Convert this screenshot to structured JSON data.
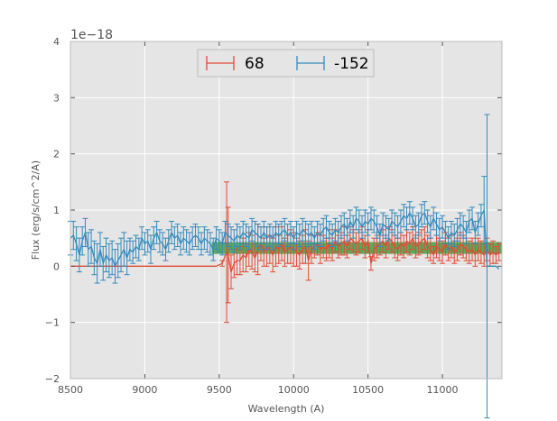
{
  "chart_data": {
    "type": "line",
    "title": "",
    "xlabel": "Wavelength (A)",
    "ylabel": "Flux (erg/s/cm^2/A)",
    "y_offset_label": "1e−18",
    "xlim": [
      8500,
      11400
    ],
    "ylim": [
      -2,
      4
    ],
    "x_ticks": [
      8500,
      9000,
      9500,
      10000,
      10500,
      11000
    ],
    "x_tick_labels": [
      "8500",
      "9000",
      "9500",
      "10000",
      "10500",
      "11000"
    ],
    "y_ticks": [
      -2,
      -1,
      0,
      1,
      2,
      3,
      4
    ],
    "y_tick_labels": [
      "−2",
      "−1",
      "0",
      "1",
      "2",
      "3",
      "4"
    ],
    "grid": true,
    "legend_position": "top-center",
    "band": {
      "x_start": 9450,
      "x_end": 11400,
      "y_low": 0.22,
      "y_high": 0.43,
      "color": "#3a9a3a"
    },
    "series": [
      {
        "name": "68",
        "color": "#e24a33",
        "x": [
          8500,
          9400,
          9480,
          9520,
          9550,
          9560,
          9580,
          9600,
          9620,
          9640,
          9660,
          9680,
          9700,
          9720,
          9740,
          9760,
          9780,
          9800,
          9820,
          9840,
          9860,
          9880,
          9900,
          9920,
          9940,
          9960,
          9980,
          10000,
          10020,
          10040,
          10060,
          10080,
          10100,
          10120,
          10140,
          10160,
          10180,
          10200,
          10220,
          10240,
          10260,
          10280,
          10300,
          10320,
          10340,
          10360,
          10380,
          10400,
          10420,
          10440,
          10460,
          10480,
          10500,
          10520,
          10540,
          10560,
          10580,
          10600,
          10620,
          10640,
          10660,
          10680,
          10700,
          10720,
          10740,
          10760,
          10780,
          10800,
          10820,
          10840,
          10860,
          10880,
          10900,
          10920,
          10940,
          10960,
          10980,
          11000,
          11020,
          11040,
          11060,
          11080,
          11100,
          11120,
          11140,
          11160,
          11180,
          11200,
          11220,
          11240,
          11260,
          11280,
          11300,
          11320,
          11340,
          11360,
          11380
        ],
        "y": [
          0,
          0,
          0,
          0.05,
          0.25,
          0.2,
          -0.1,
          0.05,
          0.1,
          0.1,
          0.2,
          0.15,
          0.3,
          0.25,
          0.15,
          0.3,
          0.4,
          0.25,
          0.35,
          0.3,
          0.2,
          0.35,
          0.3,
          0.4,
          0.25,
          0.3,
          0.35,
          0.3,
          0.25,
          0.2,
          0.3,
          0.35,
          0.1,
          0.3,
          0.35,
          0.4,
          0.3,
          0.35,
          0.3,
          0.4,
          0.3,
          0.45,
          0.35,
          0.4,
          0.45,
          0.35,
          0.5,
          0.45,
          0.4,
          0.45,
          0.5,
          0.35,
          0.45,
          0.05,
          0.3,
          0.35,
          0.4,
          0.45,
          0.35,
          0.5,
          0.45,
          0.35,
          0.3,
          0.4,
          0.35,
          0.45,
          0.4,
          0.5,
          0.35,
          0.4,
          0.45,
          0.5,
          0.35,
          0.3,
          0.2,
          0.35,
          0.3,
          0.25,
          0.4,
          0.3,
          0.35,
          0.25,
          0.3,
          0.4,
          0.35,
          0.3,
          0.25,
          0.3,
          0.2,
          0.3,
          0.25,
          0.2,
          0.3,
          0.2,
          0.25,
          0.2,
          0.25
        ],
        "err": [
          0,
          0,
          0,
          0.05,
          1.25,
          0.85,
          0.3,
          0.25,
          0.25,
          0.25,
          0.3,
          0.25,
          0.3,
          0.3,
          0.25,
          0.45,
          0.3,
          0.25,
          0.35,
          0.25,
          0.3,
          0.35,
          0.25,
          0.3,
          0.25,
          0.25,
          0.3,
          0.3,
          0.25,
          0.25,
          0.25,
          0.3,
          0.35,
          0.25,
          0.2,
          0.2,
          0.25,
          0.2,
          0.2,
          0.25,
          0.2,
          0.2,
          0.2,
          0.2,
          0.25,
          0.2,
          0.2,
          0.2,
          0.2,
          0.2,
          0.2,
          0.2,
          0.2,
          0.12,
          0.2,
          0.2,
          0.2,
          0.2,
          0.2,
          0.2,
          0.2,
          0.2,
          0.2,
          0.2,
          0.2,
          0.2,
          0.2,
          0.2,
          0.2,
          0.2,
          0.2,
          0.2,
          0.2,
          0.2,
          0.15,
          0.2,
          0.2,
          0.2,
          0.2,
          0.2,
          0.2,
          0.2,
          0.2,
          0.2,
          0.2,
          0.2,
          0.2,
          0.2,
          0.2,
          0.2,
          0.2,
          0.2,
          0.2,
          0.2,
          0.2,
          0.15,
          0.15
        ]
      },
      {
        "name": "-152",
        "color": "#348abd",
        "x": [
          8500,
          8520,
          8540,
          8560,
          8580,
          8600,
          8620,
          8640,
          8660,
          8680,
          8700,
          8720,
          8740,
          8760,
          8780,
          8800,
          8820,
          8840,
          8860,
          8880,
          8900,
          8920,
          8940,
          8960,
          8980,
          9000,
          9020,
          9040,
          9060,
          9080,
          9100,
          9120,
          9140,
          9160,
          9180,
          9200,
          9220,
          9240,
          9260,
          9280,
          9300,
          9320,
          9340,
          9360,
          9380,
          9400,
          9420,
          9440,
          9460,
          9480,
          9500,
          9520,
          9540,
          9560,
          9580,
          9600,
          9620,
          9640,
          9660,
          9680,
          9700,
          9720,
          9740,
          9760,
          9780,
          9800,
          9820,
          9840,
          9860,
          9880,
          9900,
          9920,
          9940,
          9960,
          9980,
          10000,
          10020,
          10040,
          10060,
          10080,
          10100,
          10120,
          10140,
          10160,
          10180,
          10200,
          10220,
          10240,
          10260,
          10280,
          10300,
          10320,
          10340,
          10360,
          10380,
          10400,
          10420,
          10440,
          10460,
          10480,
          10500,
          10520,
          10540,
          10560,
          10580,
          10600,
          10620,
          10640,
          10660,
          10680,
          10700,
          10720,
          10740,
          10760,
          10780,
          10800,
          10820,
          10840,
          10860,
          10880,
          10900,
          10920,
          10940,
          10960,
          10980,
          11000,
          11020,
          11040,
          11060,
          11080,
          11100,
          11120,
          11140,
          11160,
          11180,
          11200,
          11220,
          11240,
          11260,
          11280,
          11300,
          11320,
          11340,
          11360,
          11380
        ],
        "y": [
          0.5,
          0.55,
          0.4,
          0.2,
          0.45,
          0.6,
          0.3,
          0.35,
          0.15,
          0.05,
          0.3,
          0.05,
          0.2,
          0.1,
          0.15,
          0.0,
          0.1,
          0.2,
          0.3,
          0.15,
          0.3,
          0.25,
          0.35,
          0.3,
          0.5,
          0.4,
          0.45,
          0.3,
          0.5,
          0.6,
          0.45,
          0.4,
          0.3,
          0.45,
          0.6,
          0.5,
          0.55,
          0.4,
          0.5,
          0.45,
          0.4,
          0.5,
          0.55,
          0.5,
          0.4,
          0.5,
          0.45,
          0.4,
          0.3,
          0.5,
          0.45,
          0.4,
          0.6,
          0.55,
          0.5,
          0.45,
          0.55,
          0.5,
          0.6,
          0.55,
          0.5,
          0.65,
          0.6,
          0.55,
          0.5,
          0.6,
          0.5,
          0.55,
          0.5,
          0.6,
          0.55,
          0.6,
          0.65,
          0.55,
          0.6,
          0.5,
          0.6,
          0.55,
          0.65,
          0.6,
          0.55,
          0.6,
          0.5,
          0.6,
          0.55,
          0.65,
          0.7,
          0.6,
          0.55,
          0.65,
          0.6,
          0.7,
          0.75,
          0.65,
          0.8,
          0.7,
          0.85,
          0.8,
          0.7,
          0.8,
          0.75,
          0.85,
          0.8,
          0.7,
          0.55,
          0.75,
          0.7,
          0.65,
          0.8,
          0.75,
          0.7,
          0.8,
          0.9,
          0.85,
          0.95,
          0.85,
          0.7,
          0.75,
          0.9,
          0.95,
          0.8,
          0.7,
          0.85,
          0.75,
          0.65,
          0.7,
          0.6,
          0.5,
          0.6,
          0.55,
          0.65,
          0.75,
          0.7,
          0.6,
          0.8,
          0.85,
          0.6,
          0.75,
          0.9,
          1.0,
          0.0,
          0.0,
          0.0,
          0.0,
          -0.05
        ],
        "err": [
          0.3,
          0.25,
          0.3,
          0.3,
          0.25,
          0.25,
          0.3,
          0.3,
          0.3,
          0.35,
          0.3,
          0.3,
          0.3,
          0.3,
          0.3,
          0.3,
          0.3,
          0.3,
          0.3,
          0.3,
          0.2,
          0.2,
          0.2,
          0.2,
          0.2,
          0.2,
          0.2,
          0.25,
          0.2,
          0.2,
          0.2,
          0.2,
          0.2,
          0.2,
          0.2,
          0.2,
          0.2,
          0.2,
          0.2,
          0.2,
          0.2,
          0.2,
          0.2,
          0.2,
          0.2,
          0.2,
          0.2,
          0.2,
          0.2,
          0.2,
          0.2,
          0.2,
          0.2,
          0.2,
          0.2,
          0.2,
          0.2,
          0.2,
          0.2,
          0.2,
          0.2,
          0.2,
          0.2,
          0.2,
          0.2,
          0.2,
          0.2,
          0.2,
          0.2,
          0.2,
          0.2,
          0.2,
          0.2,
          0.2,
          0.2,
          0.2,
          0.2,
          0.2,
          0.2,
          0.2,
          0.2,
          0.2,
          0.2,
          0.2,
          0.2,
          0.2,
          0.2,
          0.2,
          0.2,
          0.2,
          0.2,
          0.2,
          0.2,
          0.2,
          0.2,
          0.2,
          0.2,
          0.2,
          0.2,
          0.2,
          0.2,
          0.2,
          0.2,
          0.2,
          0.2,
          0.2,
          0.2,
          0.2,
          0.2,
          0.2,
          0.2,
          0.2,
          0.2,
          0.2,
          0.2,
          0.2,
          0.2,
          0.2,
          0.2,
          0.2,
          0.2,
          0.2,
          0.2,
          0.2,
          0.2,
          0.2,
          0.2,
          0.2,
          0.2,
          0.2,
          0.2,
          0.2,
          0.2,
          0.2,
          0.2,
          0.2,
          0.2,
          0.2,
          0.2,
          0.6,
          2.7,
          0.0,
          0.0,
          0.0,
          0.0
        ]
      }
    ]
  }
}
